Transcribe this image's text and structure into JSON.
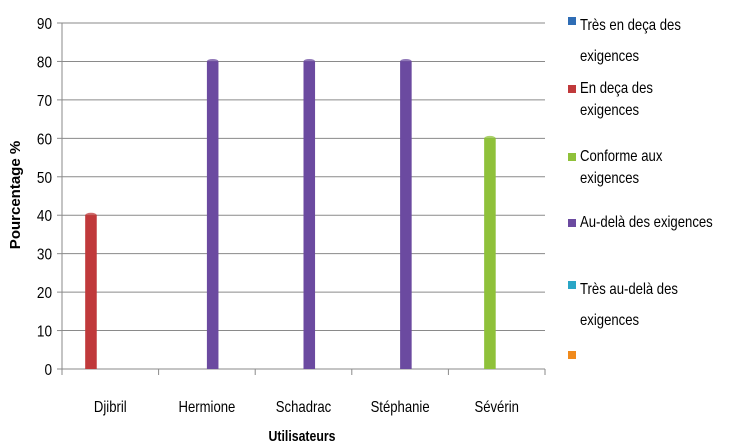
{
  "chart_data": {
    "type": "bar",
    "title": "",
    "xlabel": "Utilisateurs",
    "ylabel": "Pourcentage %",
    "ylim": [
      0,
      90
    ],
    "yticks": [
      "0",
      "10",
      "20",
      "30",
      "40",
      "50",
      "60",
      "70",
      "80",
      "90"
    ],
    "categories": [
      "Djibril",
      "Hermione",
      "Schadrac",
      "Stéphanie",
      "Sévérin"
    ],
    "series": [
      {
        "name": "Très en deça des exigences",
        "color": "#2f6db5",
        "values": [
          0,
          0,
          0,
          0,
          0
        ]
      },
      {
        "name": "En deça des exigences",
        "color": "#c0393b",
        "values": [
          40,
          0,
          0,
          0,
          0
        ]
      },
      {
        "name": "Conforme aux exigences",
        "color": "#8fc13a",
        "values": [
          0,
          0,
          0,
          0,
          60
        ]
      },
      {
        "name": "Au-delà des exigences",
        "color": "#6b4aa0",
        "values": [
          0,
          80,
          80,
          80,
          0
        ]
      },
      {
        "name": "Très au-delà des exigences",
        "color": "#2aa6c6",
        "values": [
          0,
          0,
          0,
          0,
          0
        ]
      },
      {
        "name": "",
        "color": "#f08a1c",
        "values": [
          0,
          0,
          0,
          0,
          0
        ]
      }
    ],
    "grid": true,
    "legend_position": "right"
  }
}
